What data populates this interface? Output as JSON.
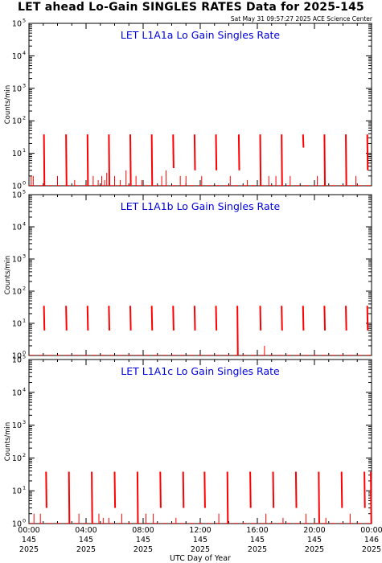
{
  "header": {
    "title": "LET ahead Lo-Gain SINGLES RATES Data for 2025-145",
    "timestamp": "Sat May 31 09:57:27 2025 ACE Science Center"
  },
  "colors": {
    "data": "#ff0000",
    "panel_title": "#0000dd",
    "axes": "#000000",
    "background": "#ffffff"
  },
  "chart_data": [
    {
      "type": "line",
      "title": "LET L1A1a Lo Gain Singles Rate",
      "ylabel": "Counts/min",
      "y_scale": "log",
      "ylim": [
        1,
        100000
      ],
      "y_ticks": [
        {
          "exp": "0",
          "value": 1
        },
        {
          "exp": "1",
          "value": 10
        },
        {
          "exp": "2",
          "value": 100
        },
        {
          "exp": "3",
          "value": 1000
        },
        {
          "exp": "4",
          "value": 10000
        },
        {
          "exp": "5",
          "value": 100000
        }
      ],
      "xlim": [
        0,
        24
      ],
      "spikes": [
        {
          "t": 1.05,
          "top": 38,
          "bottom": 1
        },
        {
          "t": 2.6,
          "top": 38,
          "bottom": 1
        },
        {
          "t": 4.1,
          "top": 38,
          "bottom": 1
        },
        {
          "t": 5.6,
          "top": 38,
          "bottom": 1
        },
        {
          "t": 7.1,
          "top": 38,
          "bottom": 1
        },
        {
          "t": 8.6,
          "top": 38,
          "bottom": 1
        },
        {
          "t": 10.1,
          "top": 38,
          "bottom": 3.5
        },
        {
          "t": 11.6,
          "top": 38,
          "bottom": 3
        },
        {
          "t": 13.1,
          "top": 38,
          "bottom": 3
        },
        {
          "t": 14.7,
          "top": 38,
          "bottom": 3
        },
        {
          "t": 16.2,
          "top": 38,
          "bottom": 1
        },
        {
          "t": 17.7,
          "top": 38,
          "bottom": 1
        },
        {
          "t": 19.2,
          "top": 38,
          "bottom": 15
        },
        {
          "t": 20.7,
          "top": 38,
          "bottom": 1
        },
        {
          "t": 22.2,
          "top": 38,
          "bottom": 1
        },
        {
          "t": 23.7,
          "top": 38,
          "bottom": 3
        }
      ],
      "noise": [
        {
          "t": 0.15,
          "v": 2
        },
        {
          "t": 0.3,
          "v": 2
        },
        {
          "t": 2.0,
          "v": 2
        },
        {
          "t": 3.2,
          "v": 1.5
        },
        {
          "t": 4.5,
          "v": 2
        },
        {
          "t": 4.85,
          "v": 1.5
        },
        {
          "t": 5.1,
          "v": 2
        },
        {
          "t": 5.3,
          "v": 1.5
        },
        {
          "t": 5.45,
          "v": 2.5
        },
        {
          "t": 6.0,
          "v": 2
        },
        {
          "t": 6.4,
          "v": 1.5
        },
        {
          "t": 6.8,
          "v": 3
        },
        {
          "t": 7.5,
          "v": 2
        },
        {
          "t": 7.9,
          "v": 1.5
        },
        {
          "t": 9.3,
          "v": 2
        },
        {
          "t": 9.6,
          "v": 3
        },
        {
          "t": 10.6,
          "v": 2
        },
        {
          "t": 11.0,
          "v": 2
        },
        {
          "t": 12.1,
          "v": 2
        },
        {
          "t": 14.1,
          "v": 2
        },
        {
          "t": 15.3,
          "v": 1.5
        },
        {
          "t": 16.8,
          "v": 2
        },
        {
          "t": 17.3,
          "v": 2
        },
        {
          "t": 18.3,
          "v": 2
        },
        {
          "t": 20.2,
          "v": 2
        },
        {
          "t": 22.9,
          "v": 2
        }
      ]
    },
    {
      "type": "line",
      "title": "LET L1A1b Lo Gain Singles Rate",
      "ylabel": "Counts/min",
      "y_scale": "log",
      "ylim": [
        1,
        100000
      ],
      "y_ticks": [
        {
          "exp": "0",
          "value": 1
        },
        {
          "exp": "1",
          "value": 10
        },
        {
          "exp": "2",
          "value": 100
        },
        {
          "exp": "3",
          "value": 1000
        },
        {
          "exp": "4",
          "value": 10000
        },
        {
          "exp": "5",
          "value": 100000
        }
      ],
      "xlim": [
        0,
        24
      ],
      "spikes": [
        {
          "t": 1.05,
          "top": 35,
          "bottom": 6
        },
        {
          "t": 2.6,
          "top": 35,
          "bottom": 6
        },
        {
          "t": 4.1,
          "top": 35,
          "bottom": 6
        },
        {
          "t": 5.6,
          "top": 35,
          "bottom": 6
        },
        {
          "t": 7.1,
          "top": 35,
          "bottom": 6
        },
        {
          "t": 8.6,
          "top": 35,
          "bottom": 6
        },
        {
          "t": 10.1,
          "top": 35,
          "bottom": 6
        },
        {
          "t": 11.6,
          "top": 35,
          "bottom": 6
        },
        {
          "t": 13.1,
          "top": 35,
          "bottom": 6
        },
        {
          "t": 14.6,
          "top": 35,
          "bottom": 1
        },
        {
          "t": 16.2,
          "top": 35,
          "bottom": 6
        },
        {
          "t": 17.7,
          "top": 35,
          "bottom": 6
        },
        {
          "t": 19.2,
          "top": 35,
          "bottom": 6
        },
        {
          "t": 20.7,
          "top": 35,
          "bottom": 6
        },
        {
          "t": 22.2,
          "top": 35,
          "bottom": 6
        },
        {
          "t": 23.7,
          "top": 35,
          "bottom": 6
        }
      ],
      "noise": [
        {
          "t": 16.5,
          "v": 2
        }
      ]
    },
    {
      "type": "line",
      "title": "LET L1A1c Lo Gain Singles Rate",
      "ylabel": "Counts/min",
      "y_scale": "log",
      "ylim": [
        1,
        100000
      ],
      "y_ticks": [
        {
          "exp": "0",
          "value": 1
        },
        {
          "exp": "1",
          "value": 10
        },
        {
          "exp": "2",
          "value": 100
        },
        {
          "exp": "3",
          "value": 1000
        },
        {
          "exp": "4",
          "value": 10000
        },
        {
          "exp": "5",
          "value": 100000
        }
      ],
      "xlim": [
        0,
        24
      ],
      "xlabel": "UTC Day of Year",
      "x_ticks": [
        {
          "t": 0,
          "time": "00:00",
          "doy": "145",
          "year": "2025"
        },
        {
          "t": 4,
          "time": "04:00",
          "doy": "145",
          "year": "2025"
        },
        {
          "t": 8,
          "time": "08:00",
          "doy": "145",
          "year": "2025"
        },
        {
          "t": 12,
          "time": "12:00",
          "doy": "145",
          "year": "2025"
        },
        {
          "t": 16,
          "time": "16:00",
          "doy": "145",
          "year": "2025"
        },
        {
          "t": 20,
          "time": "20:00",
          "doy": "145",
          "year": "2025"
        },
        {
          "t": 24,
          "time": "00:00",
          "doy": "146",
          "year": "2025"
        }
      ],
      "spikes": [
        {
          "t": 1.2,
          "top": 38,
          "bottom": 3
        },
        {
          "t": 2.8,
          "top": 38,
          "bottom": 1
        },
        {
          "t": 4.4,
          "top": 38,
          "bottom": 1
        },
        {
          "t": 6.0,
          "top": 38,
          "bottom": 3
        },
        {
          "t": 7.6,
          "top": 38,
          "bottom": 1
        },
        {
          "t": 9.2,
          "top": 38,
          "bottom": 3
        },
        {
          "t": 10.8,
          "top": 38,
          "bottom": 3
        },
        {
          "t": 12.3,
          "top": 38,
          "bottom": 3
        },
        {
          "t": 13.9,
          "top": 38,
          "bottom": 1
        },
        {
          "t": 15.5,
          "top": 38,
          "bottom": 3
        },
        {
          "t": 17.1,
          "top": 38,
          "bottom": 3
        },
        {
          "t": 18.7,
          "top": 38,
          "bottom": 3
        },
        {
          "t": 20.3,
          "top": 38,
          "bottom": 1
        },
        {
          "t": 21.9,
          "top": 38,
          "bottom": 3
        },
        {
          "t": 23.5,
          "top": 38,
          "bottom": 3
        },
        {
          "t": 23.95,
          "top": 38,
          "bottom": 1
        }
      ],
      "noise": [
        {
          "t": 0.35,
          "v": 2
        },
        {
          "t": 0.8,
          "v": 2
        },
        {
          "t": 3.5,
          "v": 2
        },
        {
          "t": 4.9,
          "v": 2
        },
        {
          "t": 5.2,
          "v": 1.5
        },
        {
          "t": 5.6,
          "v": 1.5
        },
        {
          "t": 6.5,
          "v": 2
        },
        {
          "t": 8.2,
          "v": 2
        },
        {
          "t": 8.7,
          "v": 2
        },
        {
          "t": 10.3,
          "v": 1.5
        },
        {
          "t": 13.3,
          "v": 2
        },
        {
          "t": 16.6,
          "v": 2
        },
        {
          "t": 17.8,
          "v": 1.5
        },
        {
          "t": 19.4,
          "v": 2
        },
        {
          "t": 20.8,
          "v": 1.5
        },
        {
          "t": 22.5,
          "v": 2
        }
      ]
    }
  ]
}
